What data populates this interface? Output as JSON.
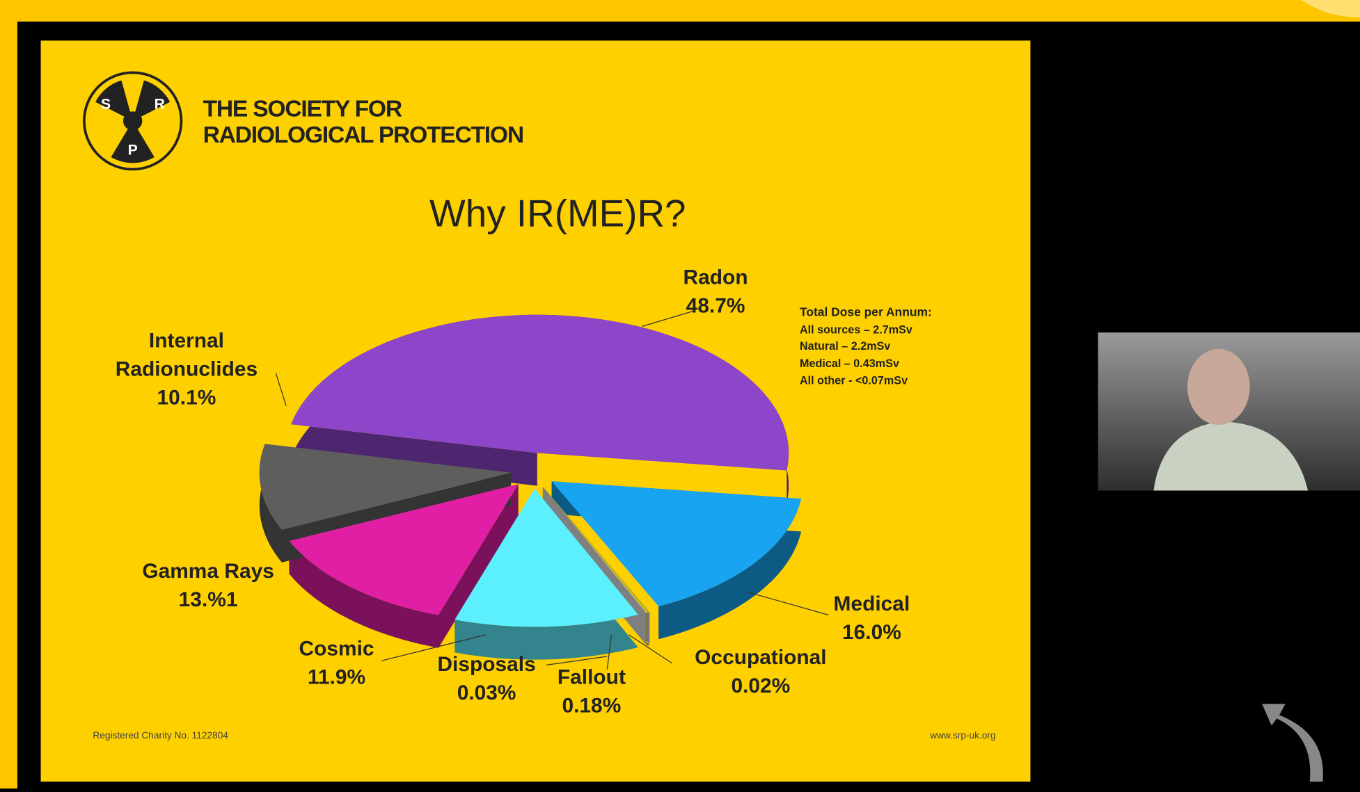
{
  "header": {
    "logo_letters": [
      "S",
      "R",
      "P"
    ],
    "org_lines": [
      "THE SOCIETY FOR",
      "RADIOLOGICAL PROTECTION"
    ]
  },
  "chart_data": {
    "type": "pie",
    "title": "Why IR(ME)R?",
    "categories": [
      "Radon",
      "Medical",
      "Occupational",
      "Fallout",
      "Disposals",
      "Cosmic",
      "Gamma Rays",
      "Internal Radionuclides"
    ],
    "values": [
      48.7,
      16.0,
      0.02,
      0.18,
      0.03,
      11.9,
      13.1,
      10.1
    ],
    "value_labels": [
      "48.7%",
      "16.0%",
      "0.02%",
      "0.18%",
      "0.03%",
      "11.9%",
      "13.%1",
      "10.1%"
    ],
    "colors": [
      "#8d45c9",
      "#18a4f0",
      "#d8d8d8",
      "#c9b800",
      "#e6e6e6",
      "#5cf0ff",
      "#e01fa4",
      "#5e5e5e"
    ]
  },
  "note": {
    "title": "Total Dose per Annum:",
    "lines": [
      "All sources – 2.7mSv",
      "Natural – 2.2mSv",
      "Medical – 0.43mSv",
      "All other - <0.07mSv"
    ]
  },
  "footer": {
    "charity": "Registered Charity No. 1122804",
    "website": "www.srp-uk.org"
  }
}
